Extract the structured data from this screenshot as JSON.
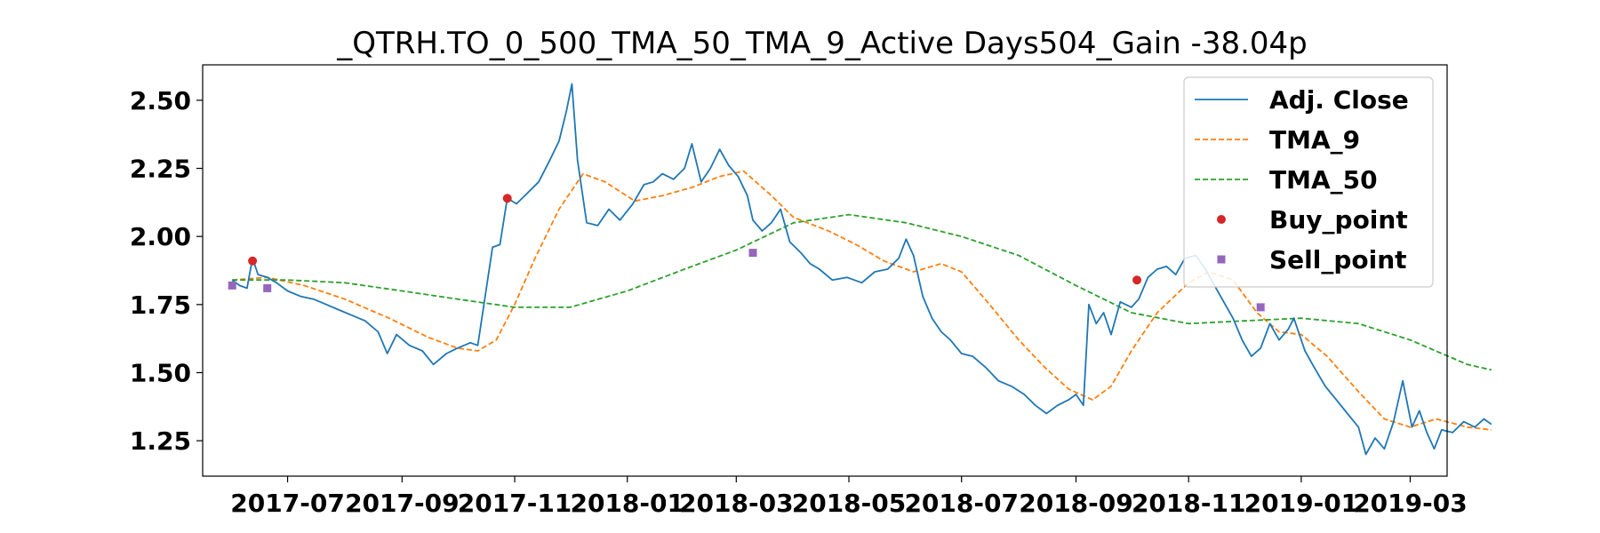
{
  "chart_data": {
    "type": "line",
    "title": "_QTRH.TO_0_500_TMA_50_TMA_9_Active Days504_Gain -38.04p",
    "xlabel": "",
    "ylabel": "",
    "x_range": [
      "2017-05-16",
      "2019-03-21"
    ],
    "ylim": [
      1.12,
      2.63
    ],
    "grid": false,
    "legend_position": "top-right",
    "x_ticks": [
      "2017-07",
      "2017-09",
      "2017-11",
      "2018-01",
      "2018-03",
      "2018-05",
      "2018-07",
      "2018-09",
      "2018-11",
      "2019-01",
      "2019-03"
    ],
    "y_ticks": [
      "1.25",
      "1.50",
      "1.75",
      "2.00",
      "2.25",
      "2.50"
    ],
    "series": [
      {
        "name": "Adj. Close",
        "color": "#1f77b4",
        "style": "solid",
        "points": [
          [
            "2017-06-01",
            1.84
          ],
          [
            "2017-06-05",
            1.82
          ],
          [
            "2017-06-09",
            1.81
          ],
          [
            "2017-06-12",
            1.92
          ],
          [
            "2017-06-15",
            1.86
          ],
          [
            "2017-06-20",
            1.85
          ],
          [
            "2017-06-25",
            1.83
          ],
          [
            "2017-07-01",
            1.8
          ],
          [
            "2017-07-08",
            1.78
          ],
          [
            "2017-07-15",
            1.77
          ],
          [
            "2017-07-22",
            1.75
          ],
          [
            "2017-07-29",
            1.73
          ],
          [
            "2017-08-05",
            1.71
          ],
          [
            "2017-08-12",
            1.69
          ],
          [
            "2017-08-19",
            1.65
          ],
          [
            "2017-08-24",
            1.57
          ],
          [
            "2017-08-29",
            1.64
          ],
          [
            "2017-09-05",
            1.6
          ],
          [
            "2017-09-12",
            1.58
          ],
          [
            "2017-09-18",
            1.53
          ],
          [
            "2017-09-25",
            1.57
          ],
          [
            "2017-10-01",
            1.59
          ],
          [
            "2017-10-08",
            1.61
          ],
          [
            "2017-10-12",
            1.6
          ],
          [
            "2017-10-16",
            1.78
          ],
          [
            "2017-10-20",
            1.96
          ],
          [
            "2017-10-24",
            1.97
          ],
          [
            "2017-10-28",
            2.14
          ],
          [
            "2017-11-02",
            2.12
          ],
          [
            "2017-11-08",
            2.16
          ],
          [
            "2017-11-14",
            2.2
          ],
          [
            "2017-11-20",
            2.28
          ],
          [
            "2017-11-25",
            2.35
          ],
          [
            "2017-11-29",
            2.46
          ],
          [
            "2017-12-02",
            2.56
          ],
          [
            "2017-12-05",
            2.28
          ],
          [
            "2017-12-10",
            2.05
          ],
          [
            "2017-12-16",
            2.04
          ],
          [
            "2017-12-22",
            2.1
          ],
          [
            "2017-12-28",
            2.06
          ],
          [
            "2018-01-04",
            2.12
          ],
          [
            "2018-01-10",
            2.19
          ],
          [
            "2018-01-15",
            2.2
          ],
          [
            "2018-01-20",
            2.23
          ],
          [
            "2018-01-26",
            2.21
          ],
          [
            "2018-02-01",
            2.25
          ],
          [
            "2018-02-05",
            2.34
          ],
          [
            "2018-02-10",
            2.2
          ],
          [
            "2018-02-15",
            2.25
          ],
          [
            "2018-02-20",
            2.32
          ],
          [
            "2018-02-25",
            2.26
          ],
          [
            "2018-03-02",
            2.22
          ],
          [
            "2018-03-07",
            2.15
          ],
          [
            "2018-03-10",
            2.06
          ],
          [
            "2018-03-15",
            2.02
          ],
          [
            "2018-03-20",
            2.05
          ],
          [
            "2018-03-25",
            2.1
          ],
          [
            "2018-03-30",
            1.98
          ],
          [
            "2018-04-05",
            1.94
          ],
          [
            "2018-04-10",
            1.9
          ],
          [
            "2018-04-15",
            1.88
          ],
          [
            "2018-04-22",
            1.84
          ],
          [
            "2018-04-30",
            1.85
          ],
          [
            "2018-05-08",
            1.83
          ],
          [
            "2018-05-15",
            1.87
          ],
          [
            "2018-05-22",
            1.88
          ],
          [
            "2018-05-28",
            1.92
          ],
          [
            "2018-06-01",
            1.99
          ],
          [
            "2018-06-05",
            1.93
          ],
          [
            "2018-06-10",
            1.78
          ],
          [
            "2018-06-15",
            1.7
          ],
          [
            "2018-06-20",
            1.65
          ],
          [
            "2018-06-25",
            1.62
          ],
          [
            "2018-07-01",
            1.57
          ],
          [
            "2018-07-07",
            1.56
          ],
          [
            "2018-07-14",
            1.52
          ],
          [
            "2018-07-21",
            1.47
          ],
          [
            "2018-07-28",
            1.45
          ],
          [
            "2018-08-04",
            1.42
          ],
          [
            "2018-08-10",
            1.38
          ],
          [
            "2018-08-16",
            1.35
          ],
          [
            "2018-08-22",
            1.38
          ],
          [
            "2018-08-28",
            1.4
          ],
          [
            "2018-09-01",
            1.42
          ],
          [
            "2018-09-05",
            1.38
          ],
          [
            "2018-09-08",
            1.75
          ],
          [
            "2018-09-12",
            1.68
          ],
          [
            "2018-09-16",
            1.72
          ],
          [
            "2018-09-20",
            1.64
          ],
          [
            "2018-09-25",
            1.76
          ],
          [
            "2018-10-01",
            1.74
          ],
          [
            "2018-10-05",
            1.77
          ],
          [
            "2018-10-10",
            1.85
          ],
          [
            "2018-10-15",
            1.88
          ],
          [
            "2018-10-20",
            1.89
          ],
          [
            "2018-10-25",
            1.86
          ],
          [
            "2018-10-30",
            1.92
          ],
          [
            "2018-11-05",
            1.93
          ],
          [
            "2018-11-10",
            1.88
          ],
          [
            "2018-11-15",
            1.82
          ],
          [
            "2018-11-20",
            1.76
          ],
          [
            "2018-11-25",
            1.7
          ],
          [
            "2018-11-30",
            1.62
          ],
          [
            "2018-12-05",
            1.56
          ],
          [
            "2018-12-10",
            1.59
          ],
          [
            "2018-12-15",
            1.68
          ],
          [
            "2018-12-20",
            1.62
          ],
          [
            "2018-12-25",
            1.66
          ],
          [
            "2018-12-28",
            1.7
          ],
          [
            "2019-01-03",
            1.58
          ],
          [
            "2019-01-08",
            1.52
          ],
          [
            "2019-01-14",
            1.45
          ],
          [
            "2019-01-20",
            1.4
          ],
          [
            "2019-01-26",
            1.35
          ],
          [
            "2019-02-01",
            1.3
          ],
          [
            "2019-02-05",
            1.2
          ],
          [
            "2019-02-10",
            1.26
          ],
          [
            "2019-02-15",
            1.22
          ],
          [
            "2019-02-20",
            1.32
          ],
          [
            "2019-02-25",
            1.47
          ],
          [
            "2019-03-02",
            1.3
          ],
          [
            "2019-03-06",
            1.36
          ],
          [
            "2019-03-10",
            1.28
          ],
          [
            "2019-03-14",
            1.22
          ],
          [
            "2019-03-18",
            1.29
          ],
          [
            "2019-03-24",
            1.28
          ],
          [
            "2019-03-30",
            1.32
          ],
          [
            "2019-04-05",
            1.3
          ],
          [
            "2019-04-10",
            1.33
          ],
          [
            "2019-04-14",
            1.31
          ]
        ]
      },
      {
        "name": "TMA_9",
        "color": "#ff7f0e",
        "style": "dashed",
        "points": [
          [
            "2017-06-01",
            1.84
          ],
          [
            "2017-06-20",
            1.85
          ],
          [
            "2017-07-10",
            1.82
          ],
          [
            "2017-08-01",
            1.77
          ],
          [
            "2017-08-25",
            1.7
          ],
          [
            "2017-09-15",
            1.63
          ],
          [
            "2017-10-01",
            1.59
          ],
          [
            "2017-10-12",
            1.58
          ],
          [
            "2017-10-22",
            1.62
          ],
          [
            "2017-11-01",
            1.75
          ],
          [
            "2017-11-12",
            1.92
          ],
          [
            "2017-11-25",
            2.1
          ],
          [
            "2017-12-08",
            2.23
          ],
          [
            "2017-12-20",
            2.2
          ],
          [
            "2018-01-05",
            2.13
          ],
          [
            "2018-01-20",
            2.15
          ],
          [
            "2018-02-05",
            2.18
          ],
          [
            "2018-02-20",
            2.22
          ],
          [
            "2018-03-05",
            2.24
          ],
          [
            "2018-03-20",
            2.15
          ],
          [
            "2018-04-01",
            2.07
          ],
          [
            "2018-04-20",
            2.02
          ],
          [
            "2018-05-05",
            1.97
          ],
          [
            "2018-05-20",
            1.91
          ],
          [
            "2018-06-05",
            1.87
          ],
          [
            "2018-06-20",
            1.9
          ],
          [
            "2018-07-01",
            1.87
          ],
          [
            "2018-07-15",
            1.76
          ],
          [
            "2018-08-01",
            1.62
          ],
          [
            "2018-08-15",
            1.52
          ],
          [
            "2018-08-28",
            1.44
          ],
          [
            "2018-09-10",
            1.4
          ],
          [
            "2018-09-20",
            1.45
          ],
          [
            "2018-10-01",
            1.58
          ],
          [
            "2018-10-15",
            1.72
          ],
          [
            "2018-11-01",
            1.83
          ],
          [
            "2018-11-12",
            1.87
          ],
          [
            "2018-11-25",
            1.84
          ],
          [
            "2018-12-08",
            1.72
          ],
          [
            "2018-12-20",
            1.65
          ],
          [
            "2019-01-01",
            1.64
          ],
          [
            "2019-01-15",
            1.56
          ],
          [
            "2019-02-01",
            1.43
          ],
          [
            "2019-02-15",
            1.33
          ],
          [
            "2019-03-01",
            1.3
          ],
          [
            "2019-03-15",
            1.33
          ],
          [
            "2019-04-01",
            1.3
          ],
          [
            "2019-04-14",
            1.29
          ]
        ]
      },
      {
        "name": "TMA_50",
        "color": "#2ca02c",
        "style": "dashed",
        "points": [
          [
            "2017-06-01",
            1.84
          ],
          [
            "2017-07-01",
            1.84
          ],
          [
            "2017-08-01",
            1.83
          ],
          [
            "2017-09-01",
            1.8
          ],
          [
            "2017-10-01",
            1.77
          ],
          [
            "2017-11-01",
            1.74
          ],
          [
            "2017-12-01",
            1.74
          ],
          [
            "2018-01-01",
            1.8
          ],
          [
            "2018-02-01",
            1.88
          ],
          [
            "2018-03-01",
            1.95
          ],
          [
            "2018-04-01",
            2.05
          ],
          [
            "2018-05-01",
            2.08
          ],
          [
            "2018-06-01",
            2.05
          ],
          [
            "2018-07-01",
            2.0
          ],
          [
            "2018-08-01",
            1.93
          ],
          [
            "2018-09-01",
            1.82
          ],
          [
            "2018-10-01",
            1.72
          ],
          [
            "2018-11-01",
            1.68
          ],
          [
            "2018-12-01",
            1.69
          ],
          [
            "2019-01-01",
            1.7
          ],
          [
            "2019-02-01",
            1.68
          ],
          [
            "2019-03-01",
            1.62
          ],
          [
            "2019-04-01",
            1.53
          ],
          [
            "2019-04-14",
            1.51
          ]
        ]
      }
    ],
    "markers": [
      {
        "name": "Buy_point",
        "color": "#d62728",
        "shape": "circle",
        "points": [
          [
            "2017-06-12",
            1.91
          ],
          [
            "2017-10-28",
            2.14
          ],
          [
            "2018-10-04",
            1.84
          ]
        ]
      },
      {
        "name": "Sell_point",
        "color": "#9467bd",
        "shape": "square",
        "points": [
          [
            "2017-06-01",
            1.82
          ],
          [
            "2017-06-20",
            1.81
          ],
          [
            "2018-03-10",
            1.94
          ],
          [
            "2018-12-10",
            1.74
          ]
        ]
      }
    ]
  }
}
